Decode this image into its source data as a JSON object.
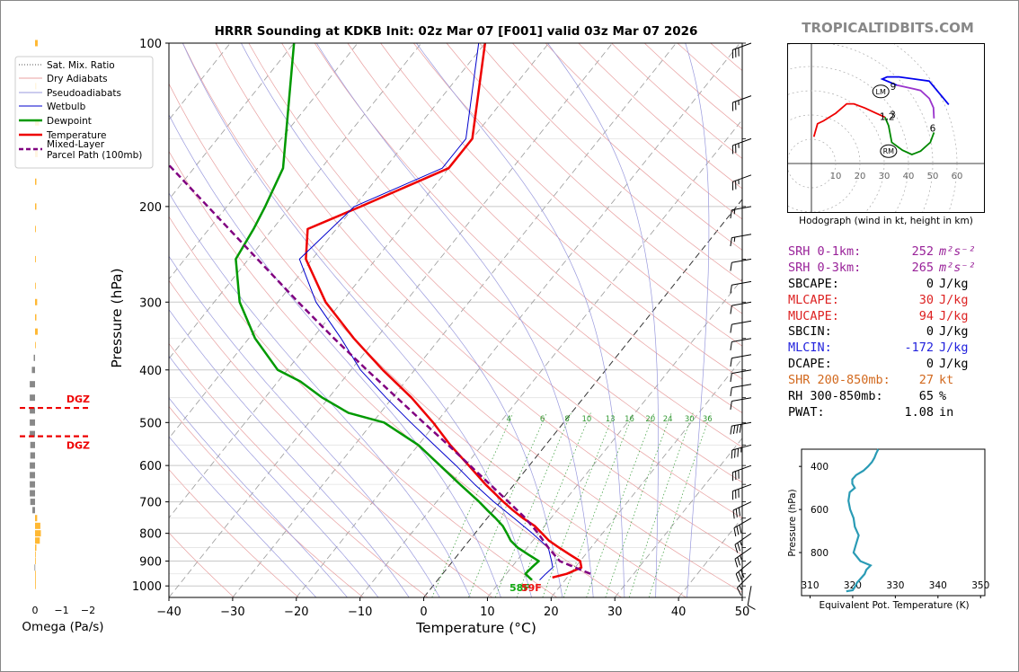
{
  "header": {
    "title": "HRRR Sounding at KDKB Init: 02z Mar 07 [F001] valid 03z Mar 07 2026",
    "site": "TROPICALTIDBITS.COM"
  },
  "chart_data": [
    {
      "id": "skewt",
      "type": "line",
      "xlabel": "Temperature (°C)",
      "ylabel": "Pressure (hPa)",
      "x_ticks": [
        -40,
        -30,
        -20,
        -10,
        0,
        10,
        20,
        30,
        40,
        50
      ],
      "x_tick_labels": [
        "−40",
        "−30",
        "−20",
        "−10",
        "0",
        "10",
        "20",
        "30",
        "40",
        "50"
      ],
      "y_ticks": [
        100,
        200,
        300,
        400,
        500,
        600,
        700,
        800,
        900,
        1000
      ],
      "xlim": [
        -40,
        50
      ],
      "ylim": [
        1050,
        100
      ],
      "y_scale": "log",
      "grid": true,
      "legend_position": "top-left",
      "legend": [
        {
          "label": "Sat. Mix. Ratio",
          "color": "#555555",
          "style": "dotted"
        },
        {
          "label": "Dry Adiabats",
          "color": "#e8a0a0",
          "style": "solid"
        },
        {
          "label": "Pseudoadiabats",
          "color": "#9999dd",
          "style": "solid"
        },
        {
          "label": "Wetbulb",
          "color": "#0000cc",
          "style": "solid"
        },
        {
          "label": "Dewpoint",
          "color": "#009900",
          "style": "solid"
        },
        {
          "label": "Temperature",
          "color": "#ee0000",
          "style": "solid"
        },
        {
          "label": "Mixed-Layer\nParcel Path (100mb)",
          "color": "#800080",
          "style": "dashed"
        }
      ],
      "mixing_ratio_labels": [
        "4",
        "6",
        "8",
        "10",
        "13",
        "16",
        "20",
        "24",
        "30",
        "36"
      ],
      "mixing_ratio_values": [
        4,
        6,
        8,
        10,
        13,
        16,
        20,
        24,
        30,
        36
      ],
      "series": [
        {
          "name": "Temperature",
          "color": "#ee0000",
          "p": [
            965,
            950,
            925,
            900,
            875,
            850,
            825,
            800,
            775,
            750,
            725,
            700,
            650,
            600,
            550,
            500,
            450,
            400,
            350,
            300,
            250,
            220,
            200,
            170,
            150,
            100
          ],
          "t": [
            17.7,
            19.5,
            21.0,
            20.0,
            17.5,
            15.0,
            12.5,
            10.5,
            8.4,
            5.6,
            3.0,
            0.5,
            -4.5,
            -9.5,
            -15.0,
            -20.5,
            -27.0,
            -35.0,
            -43.5,
            -52.5,
            -61.0,
            -64.5,
            -59.0,
            -50.0,
            -50.0,
            -60.0
          ]
        },
        {
          "name": "Dewpoint",
          "color": "#009900",
          "p": [
            975,
            950,
            925,
            900,
            875,
            850,
            825,
            800,
            775,
            750,
            725,
            700,
            650,
            600,
            550,
            500,
            480,
            450,
            420,
            400,
            350,
            300,
            250,
            220,
            200,
            170,
            100
          ],
          "t": [
            14.8,
            13.0,
            13.2,
            13.5,
            11.0,
            8.5,
            6.5,
            5.0,
            3.4,
            1.3,
            -1.0,
            -3.3,
            -8.5,
            -14.0,
            -20.0,
            -28.2,
            -35.0,
            -41.0,
            -46.5,
            -51.5,
            -59.0,
            -66.0,
            -72.0,
            -73.0,
            -74.0,
            -76.0,
            -90.0
          ]
        },
        {
          "name": "Wetbulb",
          "color": "#0000cc",
          "p": [
            975,
            950,
            925,
            900,
            850,
            800,
            750,
            700,
            650,
            600,
            550,
            500,
            450,
            400,
            350,
            300,
            250,
            200,
            170,
            150,
            100
          ],
          "t": [
            16.0,
            16.2,
            16.5,
            15.5,
            13.3,
            9.0,
            4.2,
            -1.0,
            -6.2,
            -11.5,
            -17.5,
            -24.0,
            -31.0,
            -38.5,
            -45.5,
            -54.0,
            -62.0,
            -60.0,
            -51.0,
            -51.0,
            -61.0
          ]
        },
        {
          "name": "Mixed-Layer Parcel Path (100mb)",
          "color": "#800080",
          "p": [
            950,
            900,
            850,
            800,
            750,
            700,
            650,
            600,
            550,
            500,
            450,
            400,
            350,
            300,
            250,
            200,
            150,
            125
          ],
          "t": [
            23.2,
            16.8,
            13.3,
            9.9,
            6.0,
            1.3,
            -3.8,
            -9.3,
            -15.3,
            -22.0,
            -29.3,
            -37.5,
            -46.6,
            -56.8,
            -68.6,
            -83.0,
            -101.5,
            -113.0
          ]
        }
      ],
      "surface_labels": {
        "dewpoint_f": "58F",
        "temperature_f": "59F"
      }
    },
    {
      "id": "omega",
      "type": "bar",
      "xlabel": "Omega (Pa/s)",
      "x_ticks": [
        0,
        -1,
        -2
      ],
      "x_tick_labels": [
        "0",
        "−1",
        "−2"
      ],
      "xlim": [
        0.2,
        -2.2
      ],
      "dgz_label": "DGZ",
      "dgz_pressures": [
        470,
        530
      ],
      "p": [
        100,
        120,
        140,
        160,
        180,
        200,
        220,
        250,
        280,
        300,
        320,
        340,
        360,
        380,
        400,
        425,
        450,
        475,
        500,
        525,
        550,
        575,
        600,
        625,
        650,
        675,
        700,
        725,
        750,
        775,
        800,
        825,
        850,
        875,
        900,
        925,
        950,
        975,
        1000
      ],
      "values": [
        -0.1,
        -0.05,
        -0.15,
        -0.1,
        -0.05,
        -0.05,
        -0.03,
        -0.03,
        0.0,
        -0.08,
        -0.05,
        -0.1,
        -0.02,
        0.05,
        0.12,
        0.2,
        0.2,
        0.2,
        0.2,
        0.2,
        0.18,
        0.18,
        0.2,
        0.2,
        0.2,
        0.2,
        0.18,
        0.1,
        -0.08,
        -0.2,
        -0.22,
        -0.18,
        -0.05,
        0.0,
        0.0,
        0.02,
        -0.02,
        -0.02,
        0.0
      ]
    },
    {
      "id": "hodograph",
      "type": "line",
      "caption": "Hodograph (wind in kt, height in km)",
      "ring_labels": [
        "10",
        "20",
        "30",
        "40",
        "50",
        "60"
      ],
      "rings": [
        10,
        20,
        30,
        40,
        50,
        60
      ],
      "height_labels": [
        {
          "text": "1,2",
          "u": 31.2,
          "v": 19.4
        },
        {
          "text": "3",
          "u": 33.5,
          "v": 20.2
        },
        {
          "text": "6",
          "u": 50.0,
          "v": 14.6
        },
        {
          "text": "9",
          "u": 33.7,
          "v": 31.9
        }
      ],
      "storm_markers": [
        {
          "text": "LM",
          "u": 28.6,
          "v": 29.7
        },
        {
          "text": "RM",
          "u": 31.8,
          "v": 5.1
        }
      ],
      "segments": [
        {
          "color": "#ee0000",
          "u": [
            1.0,
            2.5,
            5.0,
            10.0,
            14.5,
            17.5,
            22.0,
            27.0,
            30.3
          ],
          "v": [
            11.0,
            16.4,
            17.6,
            20.7,
            24.6,
            24.6,
            22.9,
            20.6,
            19.1
          ]
        },
        {
          "color": "#008800",
          "u": [
            30.3,
            31.8,
            33.1,
            37.5,
            41.4,
            45.0,
            49.0,
            50.5
          ],
          "v": [
            19.1,
            15.6,
            8.7,
            5.5,
            3.7,
            5.1,
            8.7,
            12.8
          ]
        },
        {
          "color": "#9933cc",
          "u": [
            50.5,
            50.3,
            48.6,
            45.0,
            39.4,
            35.2
          ],
          "v": [
            18.6,
            23.0,
            26.8,
            30.1,
            31.4,
            32.3
          ]
        },
        {
          "color": "#0000ee",
          "u": [
            35.2,
            29.2,
            31.2,
            36.1,
            48.5,
            56.6
          ],
          "v": [
            32.3,
            34.8,
            35.7,
            35.7,
            34.0,
            24.3
          ]
        }
      ]
    },
    {
      "id": "theta_e",
      "type": "line",
      "xlabel": "Equivalent Pot. Temperature (K)",
      "ylabel": "Pressure (hPa)",
      "x_ticks": [
        310,
        320,
        330,
        340,
        350
      ],
      "y_ticks": [
        400,
        600,
        800
      ],
      "y_tick_labels": [
        "400",
        "600",
        "800"
      ],
      "xlim": [
        308,
        351
      ],
      "ylim": [
        1000,
        320
      ],
      "series": [
        {
          "name": "theta-e",
          "color": "#2a9bb5",
          "p": [
            980,
            975,
            960,
            940,
            900,
            880,
            860,
            840,
            800,
            760,
            720,
            680,
            640,
            600,
            560,
            520,
            500,
            480,
            460,
            440,
            420,
            400,
            380,
            360,
            340,
            320
          ],
          "theta": [
            318.5,
            320.0,
            320.5,
            321.0,
            322.8,
            323.2,
            324.2,
            321.8,
            320.2,
            320.8,
            321.4,
            320.5,
            320.2,
            319.4,
            319.0,
            319.3,
            320.5,
            319.9,
            319.9,
            320.8,
            322.5,
            323.6,
            324.5,
            325.1,
            325.5,
            326.0
          ]
        }
      ]
    }
  ],
  "indices": [
    {
      "label": "SRH 0-1km:",
      "value": "252",
      "unit": "m²s⁻²",
      "color": "#992299"
    },
    {
      "label": "SRH 0-3km:",
      "value": "265",
      "unit": "m²s⁻²",
      "color": "#992299"
    },
    {
      "label": "SBCAPE:",
      "value": "0",
      "unit": "J/kg",
      "color": "#000000"
    },
    {
      "label": "MLCAPE:",
      "value": "30",
      "unit": "J/kg",
      "color": "#dd2222"
    },
    {
      "label": "MUCAPE:",
      "value": "94",
      "unit": "J/kg",
      "color": "#dd2222"
    },
    {
      "label": "SBCIN:",
      "value": "0",
      "unit": "J/kg",
      "color": "#000000"
    },
    {
      "label": "MLCIN:",
      "value": "-172",
      "unit": "J/kg",
      "color": "#2222dd"
    },
    {
      "label": "DCAPE:",
      "value": "0",
      "unit": "J/kg",
      "color": "#000000"
    },
    {
      "label": "SHR 200-850mb:",
      "value": "27",
      "unit": "kt",
      "color": "#d2691e"
    },
    {
      "label": "RH 300-850mb:",
      "value": "65",
      "unit": "%",
      "color": "#000000"
    },
    {
      "label": "PWAT:",
      "value": "1.08",
      "unit": "in",
      "color": "#000000"
    }
  ],
  "wind_barbs": {
    "p": [
      100,
      125,
      150,
      175,
      200,
      225,
      250,
      275,
      300,
      325,
      350,
      375,
      400,
      425,
      450,
      500,
      550,
      600,
      650,
      700,
      750,
      800,
      850,
      900,
      950,
      1000
    ],
    "speed": [
      30,
      25,
      25,
      25,
      15,
      15,
      10,
      10,
      10,
      10,
      10,
      10,
      10,
      10,
      10,
      40,
      35,
      30,
      30,
      30,
      30,
      25,
      25,
      30,
      15,
      10
    ],
    "dir": [
      250,
      250,
      250,
      250,
      260,
      260,
      260,
      260,
      260,
      260,
      260,
      260,
      260,
      260,
      260,
      260,
      255,
      250,
      250,
      245,
      240,
      235,
      235,
      230,
      225,
      190
    ]
  }
}
